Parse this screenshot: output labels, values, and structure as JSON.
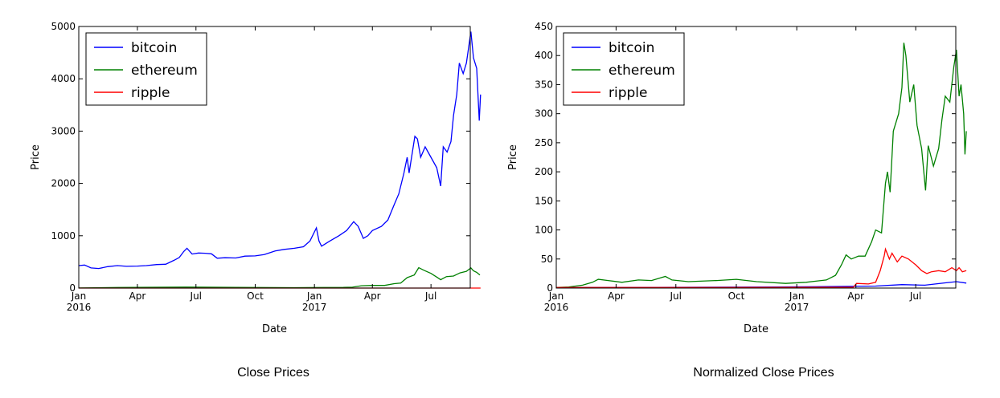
{
  "captions": [
    "Close Prices",
    "Normalized Close Prices"
  ],
  "colors": {
    "bitcoin": "#0000ff",
    "ethereum": "#008000",
    "ripple": "#ff0000"
  },
  "chart_data": [
    {
      "type": "line",
      "xlabel": "Date",
      "ylabel": "Price",
      "xlim": [
        "2016-01-01",
        "2017-08-31"
      ],
      "ylim": [
        0,
        5000
      ],
      "yticks": [
        0,
        1000,
        2000,
        3000,
        4000,
        5000
      ],
      "xticks": [
        {
          "date": "2016-01-01",
          "label": "Jan",
          "sublabel": "2016"
        },
        {
          "date": "2016-04-01",
          "label": "Apr",
          "sublabel": ""
        },
        {
          "date": "2016-07-01",
          "label": "Jul",
          "sublabel": ""
        },
        {
          "date": "2016-10-01",
          "label": "Oct",
          "sublabel": ""
        },
        {
          "date": "2017-01-01",
          "label": "Jan",
          "sublabel": "2017"
        },
        {
          "date": "2017-04-01",
          "label": "Apr",
          "sublabel": ""
        },
        {
          "date": "2017-07-01",
          "label": "Jul",
          "sublabel": ""
        }
      ],
      "legend": "top-left",
      "grid": false,
      "series": [
        {
          "name": "bitcoin",
          "points": [
            [
              "2016-01-01",
              430
            ],
            [
              "2016-01-10",
              440
            ],
            [
              "2016-01-20",
              385
            ],
            [
              "2016-02-01",
              375
            ],
            [
              "2016-02-15",
              410
            ],
            [
              "2016-03-01",
              430
            ],
            [
              "2016-03-15",
              415
            ],
            [
              "2016-04-01",
              420
            ],
            [
              "2016-04-15",
              430
            ],
            [
              "2016-05-01",
              450
            ],
            [
              "2016-05-15",
              455
            ],
            [
              "2016-05-28",
              530
            ],
            [
              "2016-06-05",
              585
            ],
            [
              "2016-06-12",
              700
            ],
            [
              "2016-06-17",
              760
            ],
            [
              "2016-06-25",
              650
            ],
            [
              "2016-07-05",
              670
            ],
            [
              "2016-07-15",
              665
            ],
            [
              "2016-07-25",
              655
            ],
            [
              "2016-08-03",
              570
            ],
            [
              "2016-08-15",
              580
            ],
            [
              "2016-09-01",
              575
            ],
            [
              "2016-09-15",
              610
            ],
            [
              "2016-10-01",
              615
            ],
            [
              "2016-10-15",
              640
            ],
            [
              "2016-11-01",
              710
            ],
            [
              "2016-11-15",
              740
            ],
            [
              "2016-12-01",
              760
            ],
            [
              "2016-12-15",
              790
            ],
            [
              "2016-12-25",
              900
            ],
            [
              "2017-01-04",
              1150
            ],
            [
              "2017-01-08",
              900
            ],
            [
              "2017-01-12",
              800
            ],
            [
              "2017-01-25",
              900
            ],
            [
              "2017-02-08",
              1000
            ],
            [
              "2017-02-20",
              1100
            ],
            [
              "2017-03-03",
              1270
            ],
            [
              "2017-03-10",
              1180
            ],
            [
              "2017-03-18",
              950
            ],
            [
              "2017-03-25",
              1000
            ],
            [
              "2017-04-01",
              1100
            ],
            [
              "2017-04-15",
              1180
            ],
            [
              "2017-04-25",
              1300
            ],
            [
              "2017-05-05",
              1600
            ],
            [
              "2017-05-12",
              1800
            ],
            [
              "2017-05-20",
              2200
            ],
            [
              "2017-05-25",
              2500
            ],
            [
              "2017-05-28",
              2200
            ],
            [
              "2017-06-06",
              2900
            ],
            [
              "2017-06-10",
              2850
            ],
            [
              "2017-06-15",
              2500
            ],
            [
              "2017-06-22",
              2700
            ],
            [
              "2017-07-01",
              2500
            ],
            [
              "2017-07-10",
              2300
            ],
            [
              "2017-07-16",
              1950
            ],
            [
              "2017-07-20",
              2700
            ],
            [
              "2017-07-26",
              2600
            ],
            [
              "2017-08-01",
              2800
            ],
            [
              "2017-08-05",
              3300
            ],
            [
              "2017-08-10",
              3700
            ],
            [
              "2017-08-14",
              4300
            ],
            [
              "2017-08-20",
              4100
            ],
            [
              "2017-08-25",
              4300
            ],
            [
              "2017-09-01",
              4900
            ],
            [
              "2017-09-05",
              4400
            ],
            [
              "2017-09-10",
              4200
            ],
            [
              "2017-09-14",
              3200
            ],
            [
              "2017-09-16",
              3700
            ]
          ]
        },
        {
          "name": "ethereum",
          "points": [
            [
              "2016-01-01",
              1
            ],
            [
              "2016-03-01",
              10
            ],
            [
              "2016-06-15",
              18
            ],
            [
              "2016-09-01",
              12
            ],
            [
              "2016-12-01",
              8
            ],
            [
              "2017-01-15",
              10
            ],
            [
              "2017-02-15",
              12
            ],
            [
              "2017-03-01",
              17
            ],
            [
              "2017-03-15",
              45
            ],
            [
              "2017-04-01",
              50
            ],
            [
              "2017-04-20",
              50
            ],
            [
              "2017-05-05",
              85
            ],
            [
              "2017-05-15",
              95
            ],
            [
              "2017-05-25",
              200
            ],
            [
              "2017-06-05",
              250
            ],
            [
              "2017-06-12",
              390
            ],
            [
              "2017-06-20",
              340
            ],
            [
              "2017-07-01",
              280
            ],
            [
              "2017-07-10",
              210
            ],
            [
              "2017-07-16",
              160
            ],
            [
              "2017-07-25",
              220
            ],
            [
              "2017-08-05",
              230
            ],
            [
              "2017-08-15",
              290
            ],
            [
              "2017-08-25",
              320
            ],
            [
              "2017-09-01",
              385
            ],
            [
              "2017-09-05",
              330
            ],
            [
              "2017-09-10",
              300
            ],
            [
              "2017-09-15",
              250
            ]
          ]
        },
        {
          "name": "ripple",
          "points": [
            [
              "2016-01-01",
              0.006
            ],
            [
              "2016-12-01",
              0.007
            ],
            [
              "2017-03-25",
              0.009
            ],
            [
              "2017-04-05",
              0.03
            ],
            [
              "2017-05-01",
              0.05
            ],
            [
              "2017-05-16",
              0.35
            ],
            [
              "2017-06-01",
              0.3
            ],
            [
              "2017-06-20",
              0.28
            ],
            [
              "2017-07-15",
              0.15
            ],
            [
              "2017-08-01",
              0.16
            ],
            [
              "2017-08-15",
              0.2
            ],
            [
              "2017-09-01",
              0.22
            ],
            [
              "2017-09-16",
              0.17
            ]
          ]
        }
      ]
    },
    {
      "type": "line",
      "xlabel": "Date",
      "ylabel": "Price",
      "xlim": [
        "2016-01-01",
        "2017-08-31"
      ],
      "ylim": [
        0,
        450
      ],
      "yticks": [
        0,
        50,
        100,
        150,
        200,
        250,
        300,
        350,
        400,
        450
      ],
      "xticks": [
        {
          "date": "2016-01-01",
          "label": "Jan",
          "sublabel": "2016"
        },
        {
          "date": "2016-04-01",
          "label": "Apr",
          "sublabel": ""
        },
        {
          "date": "2016-07-01",
          "label": "Jul",
          "sublabel": ""
        },
        {
          "date": "2016-10-01",
          "label": "Oct",
          "sublabel": ""
        },
        {
          "date": "2017-01-01",
          "label": "Jan",
          "sublabel": "2017"
        },
        {
          "date": "2017-04-01",
          "label": "Apr",
          "sublabel": ""
        },
        {
          "date": "2017-07-01",
          "label": "Jul",
          "sublabel": ""
        }
      ],
      "legend": "top-left",
      "grid": false,
      "series": [
        {
          "name": "bitcoin",
          "points": [
            [
              "2016-01-01",
              1
            ],
            [
              "2016-06-01",
              1.3
            ],
            [
              "2016-12-01",
              1.8
            ],
            [
              "2017-03-01",
              2.8
            ],
            [
              "2017-05-01",
              3.5
            ],
            [
              "2017-06-10",
              6
            ],
            [
              "2017-07-15",
              5
            ],
            [
              "2017-08-15",
              9
            ],
            [
              "2017-09-01",
              11
            ],
            [
              "2017-09-16",
              8.5
            ]
          ]
        },
        {
          "name": "ethereum",
          "points": [
            [
              "2016-01-01",
              1
            ],
            [
              "2016-01-20",
              2
            ],
            [
              "2016-02-10",
              5
            ],
            [
              "2016-02-25",
              10
            ],
            [
              "2016-03-05",
              15
            ],
            [
              "2016-03-20",
              13
            ],
            [
              "2016-04-10",
              10
            ],
            [
              "2016-05-05",
              14
            ],
            [
              "2016-05-25",
              13
            ],
            [
              "2016-06-15",
              20
            ],
            [
              "2016-06-25",
              14
            ],
            [
              "2016-07-20",
              11
            ],
            [
              "2016-09-01",
              13
            ],
            [
              "2016-10-01",
              15
            ],
            [
              "2016-11-01",
              11
            ],
            [
              "2016-12-15",
              8
            ],
            [
              "2017-01-15",
              10
            ],
            [
              "2017-02-15",
              14
            ],
            [
              "2017-03-01",
              22
            ],
            [
              "2017-03-10",
              40
            ],
            [
              "2017-03-17",
              57
            ],
            [
              "2017-03-25",
              50
            ],
            [
              "2017-04-05",
              55
            ],
            [
              "2017-04-15",
              55
            ],
            [
              "2017-04-25",
              80
            ],
            [
              "2017-05-01",
              100
            ],
            [
              "2017-05-10",
              95
            ],
            [
              "2017-05-16",
              180
            ],
            [
              "2017-05-19",
              200
            ],
            [
              "2017-05-23",
              165
            ],
            [
              "2017-05-28",
              270
            ],
            [
              "2017-06-05",
              300
            ],
            [
              "2017-06-10",
              345
            ],
            [
              "2017-06-13",
              422
            ],
            [
              "2017-06-16",
              400
            ],
            [
              "2017-06-22",
              320
            ],
            [
              "2017-06-28",
              350
            ],
            [
              "2017-07-03",
              280
            ],
            [
              "2017-07-10",
              240
            ],
            [
              "2017-07-16",
              168
            ],
            [
              "2017-07-20",
              245
            ],
            [
              "2017-07-28",
              210
            ],
            [
              "2017-08-05",
              240
            ],
            [
              "2017-08-10",
              290
            ],
            [
              "2017-08-15",
              330
            ],
            [
              "2017-08-22",
              320
            ],
            [
              "2017-08-28",
              380
            ],
            [
              "2017-09-01",
              410
            ],
            [
              "2017-09-05",
              330
            ],
            [
              "2017-09-08",
              350
            ],
            [
              "2017-09-12",
              300
            ],
            [
              "2017-09-14",
              230
            ],
            [
              "2017-09-16",
              270
            ]
          ]
        },
        {
          "name": "ripple",
          "points": [
            [
              "2016-01-01",
              1
            ],
            [
              "2016-12-01",
              1.1
            ],
            [
              "2017-03-28",
              1.5
            ],
            [
              "2017-04-02",
              8
            ],
            [
              "2017-04-20",
              7
            ],
            [
              "2017-05-01",
              10
            ],
            [
              "2017-05-08",
              30
            ],
            [
              "2017-05-14",
              55
            ],
            [
              "2017-05-16",
              67
            ],
            [
              "2017-05-22",
              50
            ],
            [
              "2017-05-26",
              60
            ],
            [
              "2017-06-03",
              45
            ],
            [
              "2017-06-10",
              55
            ],
            [
              "2017-06-20",
              50
            ],
            [
              "2017-07-01",
              40
            ],
            [
              "2017-07-10",
              30
            ],
            [
              "2017-07-18",
              25
            ],
            [
              "2017-07-25",
              28
            ],
            [
              "2017-08-05",
              30
            ],
            [
              "2017-08-15",
              28
            ],
            [
              "2017-08-25",
              35
            ],
            [
              "2017-09-01",
              30
            ],
            [
              "2017-09-05",
              35
            ],
            [
              "2017-09-10",
              28
            ],
            [
              "2017-09-16",
              30
            ]
          ]
        }
      ]
    }
  ]
}
